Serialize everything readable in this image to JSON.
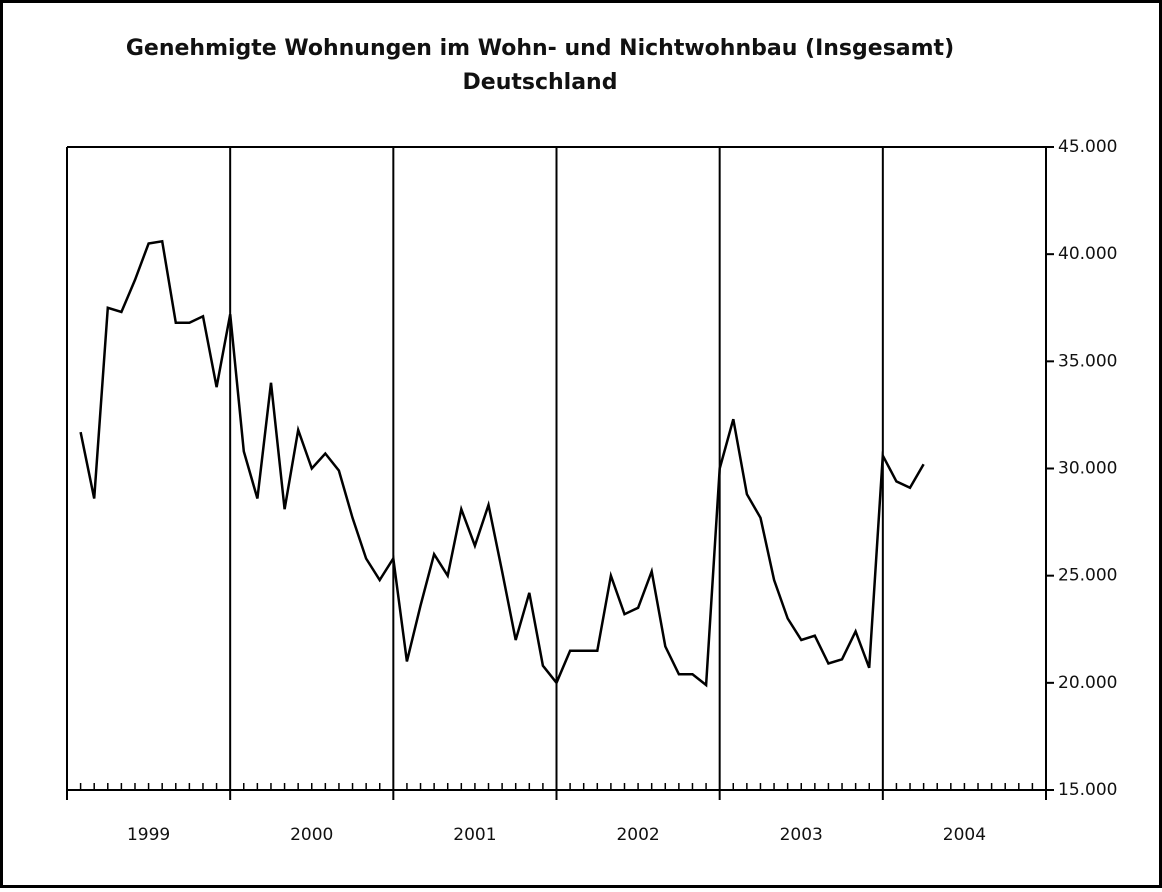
{
  "chart_data": {
    "type": "line",
    "title": "Genehmigte Wohnungen im Wohn- und Nichtwohnbau (Insgesamt)",
    "subtitle": "Deutschland",
    "categories": [
      1999,
      2000,
      2001,
      2002,
      2003,
      2004
    ],
    "values": [
      [
        31700,
        28600,
        37500,
        37300,
        38800,
        40500,
        40600,
        36800,
        36800,
        37100,
        33800,
        37200
      ],
      [
        30800,
        28600,
        34000,
        28100,
        31800,
        30000,
        30700,
        29900,
        27700,
        25800,
        24800,
        25800
      ],
      [
        21000,
        23600,
        26000,
        25000,
        28100,
        26400,
        28300,
        25200,
        22000,
        24200,
        20800,
        20000
      ],
      [
        21500,
        21500,
        21500,
        25000,
        23200,
        23500,
        25200,
        21700,
        20400,
        20400,
        19900,
        30000
      ],
      [
        32300,
        28800,
        27700,
        24800,
        23000,
        22000,
        22200,
        20900,
        21100,
        22400,
        20700,
        30600
      ],
      [
        29400,
        29100,
        30200
      ]
    ],
    "color": "#000000",
    "ylim": [
      15000,
      45000
    ],
    "yticks": [
      {
        "value": 15000,
        "label": "15.000"
      },
      {
        "value": 20000,
        "label": "20.000"
      },
      {
        "value": 25000,
        "label": "25.000"
      },
      {
        "value": 30000,
        "label": "30.000"
      },
      {
        "value": 35000,
        "label": "35.000"
      },
      {
        "value": 40000,
        "label": "40.000"
      },
      {
        "value": 45000,
        "label": "45.000"
      }
    ],
    "grid": true
  }
}
